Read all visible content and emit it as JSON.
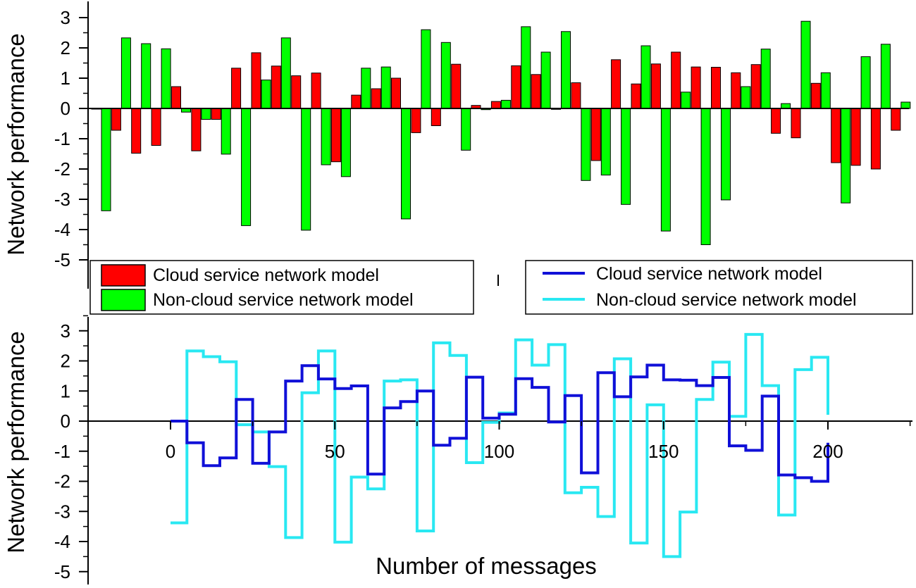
{
  "x_values": [
    0,
    5,
    10,
    15,
    20,
    25,
    30,
    35,
    40,
    45,
    50,
    55,
    60,
    65,
    70,
    75,
    80,
    85,
    90,
    95,
    100,
    105,
    110,
    115,
    120,
    125,
    130,
    135,
    140,
    145,
    150,
    155,
    160,
    165,
    170,
    175,
    180,
    185,
    190,
    195,
    200
  ],
  "cloud_values": [
    0.0,
    -0.72,
    -1.48,
    -1.22,
    0.72,
    -1.4,
    -0.36,
    1.33,
    1.84,
    1.4,
    1.08,
    1.17,
    -1.76,
    0.44,
    0.65,
    1.0,
    -0.8,
    -0.57,
    1.46,
    0.1,
    0.23,
    1.41,
    1.12,
    -0.03,
    0.85,
    -1.72,
    1.61,
    0.81,
    1.47,
    1.86,
    1.37,
    1.36,
    1.18,
    1.45,
    -0.82,
    -0.97,
    0.83,
    -1.79,
    -1.88,
    -2.0,
    -0.72
  ],
  "noncloud_values": [
    -3.38,
    2.33,
    2.14,
    1.97,
    -0.12,
    -0.36,
    -1.51,
    -3.87,
    0.94,
    2.33,
    -4.02,
    -1.86,
    -2.25,
    1.33,
    1.37,
    -3.65,
    2.6,
    2.18,
    -1.38,
    -0.04,
    0.27,
    2.7,
    1.86,
    2.54,
    -2.38,
    -2.2,
    -3.17,
    2.07,
    -4.05,
    0.54,
    -4.5,
    -3.02,
    0.72,
    1.96,
    0.16,
    2.88,
    1.18,
    -3.12,
    1.71,
    2.12,
    0.21
  ],
  "chart_data": [
    {
      "type": "bar",
      "ylabel": "Network performance",
      "ylim": [
        -5,
        3
      ],
      "yticks": [
        "3",
        "2",
        "1",
        "0",
        "-1",
        "-2",
        "-3",
        "-4",
        "-5"
      ],
      "series": [
        {
          "name": "Cloud service network model",
          "color": "#ff0000"
        },
        {
          "name": "Non-cloud service network model",
          "color": "#00ff00"
        }
      ]
    },
    {
      "type": "line",
      "xlabel": "Number of messages",
      "ylabel": "Network performance",
      "xlim": [
        -5,
        225
      ],
      "ylim": [
        -5,
        3
      ],
      "xticks": [
        "0",
        "50",
        "100",
        "150",
        "200"
      ],
      "yticks": [
        "3",
        "2",
        "1",
        "0",
        "-1",
        "-2",
        "-3",
        "-4",
        "-5"
      ],
      "series": [
        {
          "name": "Cloud service network model",
          "color": "#1010d8"
        },
        {
          "name": "Non-cloud service network model",
          "color": "#29e8f2"
        }
      ]
    }
  ]
}
